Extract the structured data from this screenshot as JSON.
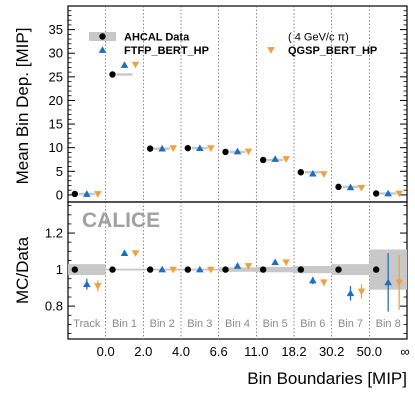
{
  "chart_data": {
    "type": "scatter",
    "figure": {
      "watermark": "CALICE",
      "xlabel": "Bin Boundaries [MIP]",
      "boundaries": [
        "0.0",
        "2.0",
        "4.0",
        "6.6",
        "11.0",
        "18.2",
        "30.2",
        "50.0",
        "∞"
      ],
      "bins": [
        "Track",
        "Bin 1",
        "Bin 2",
        "Bin 3",
        "Bin 4",
        "Bin 5",
        "Bin 6",
        "Bin 7",
        "Bin 8"
      ]
    },
    "legend": {
      "data": "AHCAL Data",
      "ftfp": "FTFP_BERT_HP",
      "qgsp": "QGSP_BERT_HP",
      "note": "( 4 GeV/c π)"
    },
    "colors": {
      "data": "#000000",
      "ftfp": "#1f6fc0",
      "qgsp": "#f0a040",
      "band": "#c8c8c8"
    },
    "top": {
      "ylabel": "Mean Bin Dep. [MIP]",
      "ylim": [
        -1.5,
        40
      ],
      "yticks": [
        "0",
        "5",
        "10",
        "15",
        "20",
        "25",
        "30",
        "35"
      ],
      "data": [
        0.2,
        25.5,
        9.8,
        9.9,
        9.1,
        7.4,
        4.8,
        1.7,
        0.3
      ],
      "ftfp": [
        0.2,
        27.5,
        9.8,
        9.9,
        9.2,
        7.6,
        4.5,
        1.6,
        0.3
      ],
      "qgsp": [
        0.2,
        27.6,
        9.9,
        9.9,
        9.2,
        7.6,
        4.4,
        1.5,
        0.3
      ]
    },
    "bottom": {
      "ylabel": "MC/Data",
      "ylim": [
        0.62,
        1.37
      ],
      "yticks": [
        "0.8",
        "1",
        "1.2"
      ],
      "band_halfwidth": [
        0.03,
        0.005,
        0.005,
        0.005,
        0.012,
        0.015,
        0.02,
        0.03,
        0.11
      ],
      "ftfp": [
        0.92,
        1.09,
        1.0,
        1.0,
        1.02,
        1.04,
        0.94,
        0.87,
        0.93
      ],
      "ftfp_err": [
        0.03,
        0.01,
        0.01,
        0.01,
        0.01,
        0.015,
        0.02,
        0.04,
        0.16
      ],
      "qgsp": [
        0.91,
        1.09,
        1.0,
        1.0,
        1.02,
        1.04,
        0.93,
        0.88,
        0.93
      ],
      "qgsp_err": [
        0.03,
        0.01,
        0.01,
        0.01,
        0.01,
        0.015,
        0.02,
        0.04,
        0.15
      ]
    }
  }
}
